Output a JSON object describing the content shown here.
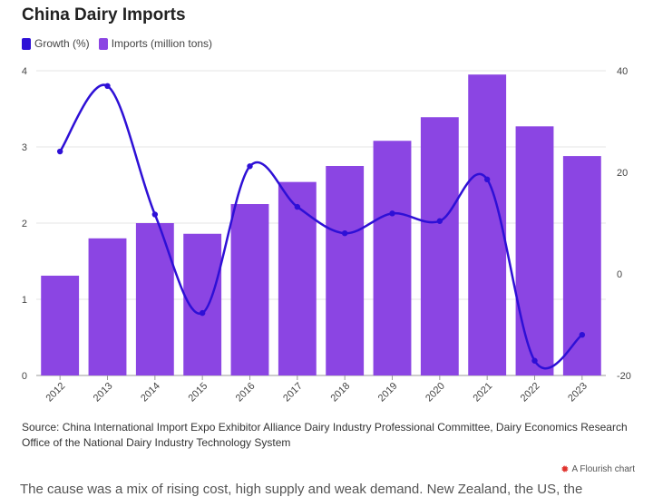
{
  "title": "China Dairy Imports",
  "legend": {
    "growth": "Growth (%)",
    "imports": "Imports (million tons)"
  },
  "colors": {
    "growth": "#2e10d6",
    "imports": "#8b45e3",
    "grid": "#e4e4e4"
  },
  "chart_data": {
    "type": "bar",
    "categories": [
      "2012",
      "2013",
      "2014",
      "2015",
      "2016",
      "2017",
      "2018",
      "2019",
      "2020",
      "2021",
      "2022",
      "2023"
    ],
    "series": [
      {
        "name": "Imports (million tons)",
        "type": "bar",
        "axis": "left",
        "values": [
          1.31,
          1.8,
          2.0,
          1.86,
          2.25,
          2.54,
          2.75,
          3.08,
          3.39,
          3.95,
          3.27,
          2.88
        ]
      },
      {
        "name": "Growth (%)",
        "type": "line",
        "axis": "right",
        "values": [
          24.1,
          37.0,
          11.7,
          -7.7,
          21.2,
          13.2,
          8.0,
          11.9,
          10.4,
          18.6,
          -17.1,
          -12.0
        ]
      }
    ],
    "left_axis": {
      "ticks": [
        "0",
        "1",
        "2",
        "3",
        "4"
      ],
      "range": [
        0,
        4
      ]
    },
    "right_axis": {
      "ticks": [
        "-20",
        "0",
        "20",
        "40"
      ],
      "range": [
        -20,
        40
      ]
    },
    "grid": true,
    "legend_position": "top-left"
  },
  "source": "Source: China International Import Expo Exhibitor Alliance Dairy Industry Professional Committee, Dairy Economics Research Office of the National Dairy Industry Technology System",
  "credit": "A Flourish chart",
  "credit_icon": "flourish-logo-icon",
  "cut_text": "The cause was a mix of rising cost, high supply and weak demand. New Zealand, the US, the"
}
